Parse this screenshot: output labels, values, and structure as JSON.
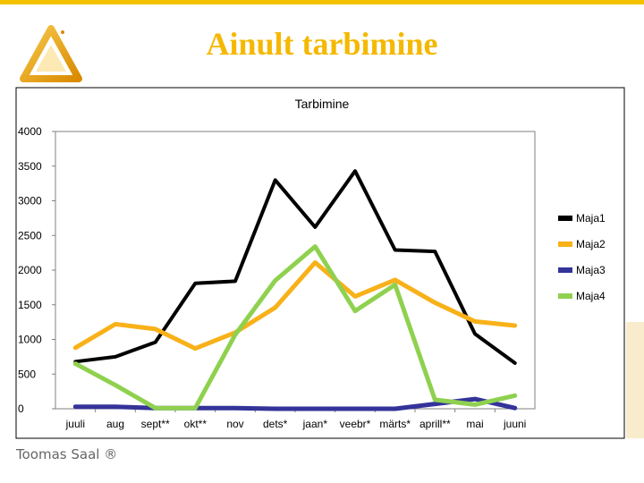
{
  "slide": {
    "title": "Ainult tarbimine",
    "footer": "Toomas Saal ®"
  },
  "colors": {
    "accent": "#f5b800",
    "bar": "#f2c200"
  },
  "chart_data": {
    "type": "line",
    "title": "Tarbimine",
    "xlabel": "",
    "ylabel": "",
    "ylim": [
      0,
      4000
    ],
    "yticks": [
      0,
      500,
      1000,
      1500,
      2000,
      2500,
      3000,
      3500,
      4000
    ],
    "grid": false,
    "legend": "right",
    "categories": [
      "juuli",
      "aug",
      "sept**",
      "okt**",
      "nov",
      "dets*",
      "jaan*",
      "veebr*",
      "märts*",
      "aprill**",
      "mai",
      "juuni"
    ],
    "series": [
      {
        "name": "Maja1",
        "color": "#000000",
        "values": [
          680,
          750,
          960,
          1810,
          1840,
          3300,
          2620,
          3430,
          2290,
          2270,
          1080,
          660
        ]
      },
      {
        "name": "Maja2",
        "color": "#f8b119",
        "values": [
          880,
          1220,
          1150,
          870,
          1100,
          1460,
          2110,
          1620,
          1860,
          1530,
          1260,
          1200
        ]
      },
      {
        "name": "Maja3",
        "color": "#333399",
        "values": [
          30,
          30,
          10,
          10,
          10,
          0,
          0,
          0,
          0,
          70,
          140,
          10
        ]
      },
      {
        "name": "Maja4",
        "color": "#8fd14f",
        "values": [
          650,
          340,
          10,
          10,
          1070,
          1850,
          2340,
          1410,
          1790,
          130,
          60,
          190
        ]
      }
    ]
  }
}
